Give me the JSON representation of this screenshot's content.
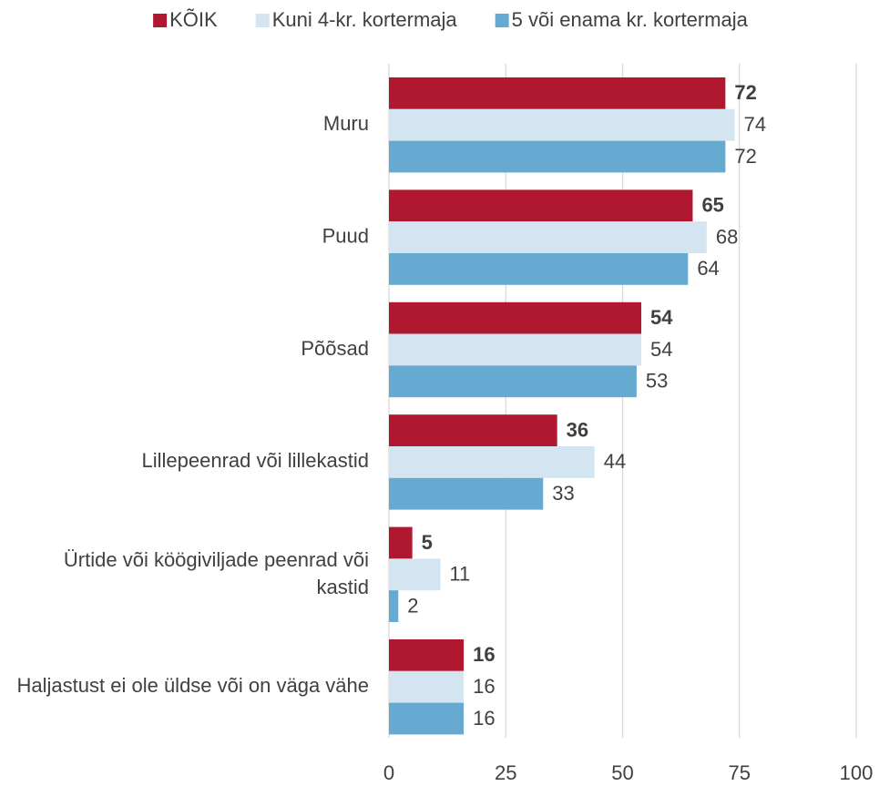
{
  "chart_data": {
    "type": "bar",
    "orientation": "horizontal",
    "categories": [
      "Muru",
      "Puud",
      "Põõsad",
      "Lillepeenrad või lillekastid",
      "Ürtide või köögiviljade peenrad või kastid",
      "Haljastust ei ole üldse või on väga vähe"
    ],
    "series": [
      {
        "name": "KÕIK",
        "color": "#b0182f",
        "values": [
          72,
          65,
          54,
          36,
          5,
          16
        ]
      },
      {
        "name": "Kuni 4-kr. kortermaja",
        "color": "#d3e5f0",
        "values": [
          74,
          68,
          54,
          44,
          11,
          16
        ]
      },
      {
        "name": "5 või enama kr. kortermaja",
        "color": "#66a9d1",
        "values": [
          72,
          64,
          53,
          33,
          2,
          16
        ]
      }
    ],
    "xlim": [
      0,
      100
    ],
    "xticks": [
      0,
      25,
      50,
      75,
      100
    ],
    "grid": true,
    "legend": "top"
  }
}
